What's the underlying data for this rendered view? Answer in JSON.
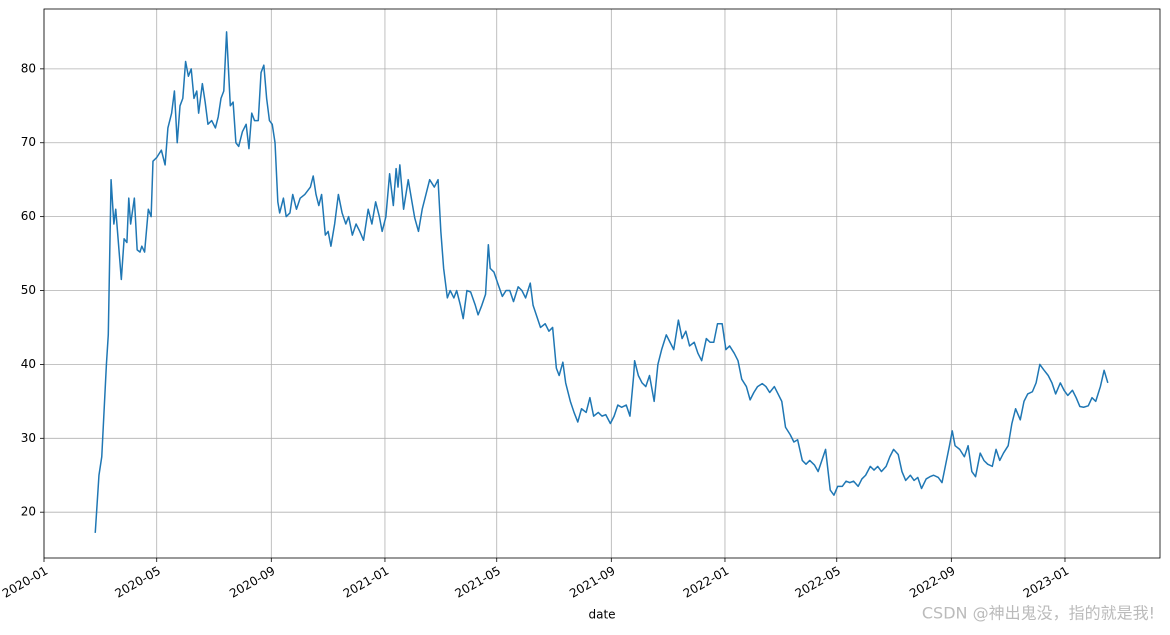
{
  "chart_data": {
    "type": "line",
    "xlabel": "date",
    "watermark": "CSDN @神出鬼没，指的就是我!",
    "xlim": [
      18262,
      19460
    ],
    "ylim": [
      13.8,
      88.1
    ],
    "grid": true,
    "xticks": [
      {
        "value": 18262,
        "label": "2020-01"
      },
      {
        "value": 18383,
        "label": "2020-05"
      },
      {
        "value": 18506,
        "label": "2020-09"
      },
      {
        "value": 18628,
        "label": "2021-01"
      },
      {
        "value": 18748,
        "label": "2021-05"
      },
      {
        "value": 18871,
        "label": "2021-09"
      },
      {
        "value": 18993,
        "label": "2022-01"
      },
      {
        "value": 19113,
        "label": "2022-05"
      },
      {
        "value": 19236,
        "label": "2022-09"
      },
      {
        "value": 19358,
        "label": "2023-01"
      }
    ],
    "yticks": [
      20,
      30,
      40,
      50,
      60,
      70,
      80
    ],
    "series": [
      {
        "color": "#1f77b4",
        "x": [
          18317,
          18321,
          18324,
          18329,
          18331,
          18334,
          18337,
          18339,
          18345,
          18348,
          18351,
          18353,
          18355,
          18359,
          18362,
          18365,
          18367,
          18370,
          18374,
          18377,
          18379,
          18383,
          18388,
          18392,
          18395,
          18399,
          18402,
          18405,
          18408,
          18411,
          18414,
          18417,
          18420,
          18423,
          18426,
          18428,
          18432,
          18435,
          18438,
          18442,
          18446,
          18449,
          18452,
          18455,
          18458,
          18462,
          18465,
          18468,
          18471,
          18475,
          18479,
          18482,
          18485,
          18488,
          18492,
          18495,
          18498,
          18501,
          18504,
          18507,
          18510,
          18513,
          18515,
          18519,
          18522,
          18526,
          18529,
          18533,
          18537,
          18542,
          18548,
          18551,
          18554,
          18557,
          18560,
          18564,
          18567,
          18570,
          18574,
          18578,
          18582,
          18586,
          18589,
          18593,
          18597,
          18601,
          18605,
          18610,
          18614,
          18618,
          18622,
          18625,
          18629,
          18633,
          18637,
          18640,
          18642,
          18644,
          18648,
          18653,
          18657,
          18660,
          18664,
          18668,
          18672,
          18676,
          18681,
          18685,
          18688,
          18691,
          18695,
          18698,
          18702,
          18705,
          18709,
          18712,
          18716,
          18720,
          18725,
          18728,
          18732,
          18736,
          18739,
          18741,
          18745,
          18749,
          18754,
          18758,
          18762,
          18766,
          18771,
          18775,
          18779,
          18784,
          18787,
          18791,
          18795,
          18800,
          18804,
          18808,
          18812,
          18815,
          18819,
          18822,
          18827,
          18831,
          18835,
          18839,
          18844,
          18848,
          18852,
          18857,
          18861,
          18865,
          18870,
          18874,
          18878,
          18882,
          18887,
          18891,
          18895,
          18896,
          18900,
          18904,
          18908,
          18912,
          18917,
          18921,
          18925,
          18930,
          18934,
          18938,
          18943,
          18947,
          18951,
          18955,
          18960,
          18964,
          18968,
          18973,
          18977,
          18981,
          18985,
          18990,
          18994,
          18998,
          19003,
          19007,
          19011,
          19016,
          19020,
          19024,
          19028,
          19033,
          19037,
          19041,
          19046,
          19050,
          19054,
          19058,
          19063,
          19067,
          19071,
          19076,
          19080,
          19084,
          19089,
          19093,
          19097,
          19101,
          19106,
          19110,
          19114,
          19119,
          19123,
          19127,
          19131,
          19136,
          19140,
          19144,
          19149,
          19153,
          19157,
          19161,
          19166,
          19170,
          19174,
          19179,
          19183,
          19187,
          19192,
          19196,
          19200,
          19204,
          19209,
          19213,
          19217,
          19222,
          19226,
          19230,
          19234,
          19237,
          19240,
          19245,
          19250,
          19254,
          19258,
          19262,
          19267,
          19271,
          19275,
          19280,
          19284,
          19288,
          19292,
          19297,
          19301,
          19305,
          19310,
          19314,
          19318,
          19323,
          19327,
          19331,
          19335,
          19340,
          19344,
          19348,
          19353,
          19357,
          19361,
          19366,
          19370,
          19374,
          19378,
          19383,
          19387,
          19391,
          19396,
          19400,
          19404
        ],
        "values": [
          17.2,
          25,
          27.5,
          40,
          44,
          65,
          59,
          61,
          51.5,
          57,
          56.5,
          62.5,
          59,
          62.5,
          55.5,
          55.2,
          56,
          55.2,
          61,
          60,
          67.5,
          68,
          69,
          67,
          72,
          74,
          77,
          70,
          75,
          76,
          81,
          79,
          80,
          76,
          77,
          74,
          78,
          75.5,
          72.5,
          73,
          72,
          73.5,
          76,
          77,
          85,
          75,
          75.5,
          70,
          69.5,
          71.5,
          72.5,
          69.2,
          74,
          73,
          73,
          79.5,
          80.5,
          76,
          73,
          72.5,
          70,
          62,
          60.5,
          62.5,
          60,
          60.5,
          63,
          61,
          62.5,
          63,
          64,
          65.5,
          63,
          61.5,
          63,
          57.5,
          58,
          56,
          59,
          63,
          60.5,
          59,
          60,
          57.5,
          59,
          58,
          56.8,
          61,
          59,
          62,
          60,
          58,
          60,
          65.8,
          61.5,
          66.5,
          64,
          67,
          61,
          65,
          62,
          59.8,
          58,
          61,
          63,
          65,
          64,
          65,
          58,
          53,
          49,
          50,
          49,
          50,
          48,
          46.2,
          50,
          49.8,
          48,
          46.7,
          48,
          49.5,
          56.2,
          53,
          52.5,
          51,
          49.2,
          50,
          50,
          48.5,
          50.5,
          50,
          49,
          51,
          48,
          46.5,
          45,
          45.5,
          44.5,
          45,
          39.5,
          38.5,
          40.3,
          37.5,
          35,
          33.5,
          32.2,
          34,
          33.5,
          35.5,
          33,
          33.5,
          33,
          33.2,
          32,
          33,
          34.5,
          34.2,
          34.5,
          33,
          38.5,
          40.5,
          38.5,
          37.5,
          37,
          38.5,
          35,
          40,
          42,
          44,
          43,
          42,
          46,
          43.5,
          44.5,
          42.5,
          43,
          41.5,
          40.5,
          43.5,
          43,
          43,
          45.5,
          45.5,
          42,
          42.5,
          41.5,
          40.5,
          38,
          37,
          35.2,
          36.2,
          37,
          37.4,
          37,
          36.2,
          37,
          36,
          35,
          31.5,
          30.5,
          29.5,
          29.8,
          27,
          26.5,
          27,
          26.4,
          25.5,
          27,
          28.5,
          23,
          22.3,
          23.5,
          23.5,
          24.2,
          24,
          24.2,
          23.5,
          24.5,
          25,
          26.2,
          25.7,
          26.2,
          25.5,
          26.2,
          27.5,
          28.5,
          27.8,
          25.5,
          24.3,
          25,
          24.3,
          24.7,
          23.2,
          24.5,
          24.8,
          25,
          24.7,
          24,
          26.5,
          29,
          31,
          29,
          28.5,
          27.5,
          29,
          25.5,
          24.8,
          28,
          27,
          26.5,
          26.2,
          28.5,
          27,
          28,
          29,
          32,
          34,
          32.5,
          35,
          36,
          36.3,
          37.5,
          40,
          39.3,
          38.5,
          37.5,
          36,
          37.5,
          36.5,
          35.8,
          36.5,
          35.5,
          34.3,
          34.2,
          34.4,
          35.5,
          35,
          37,
          39.2,
          37.5
        ]
      }
    ]
  }
}
